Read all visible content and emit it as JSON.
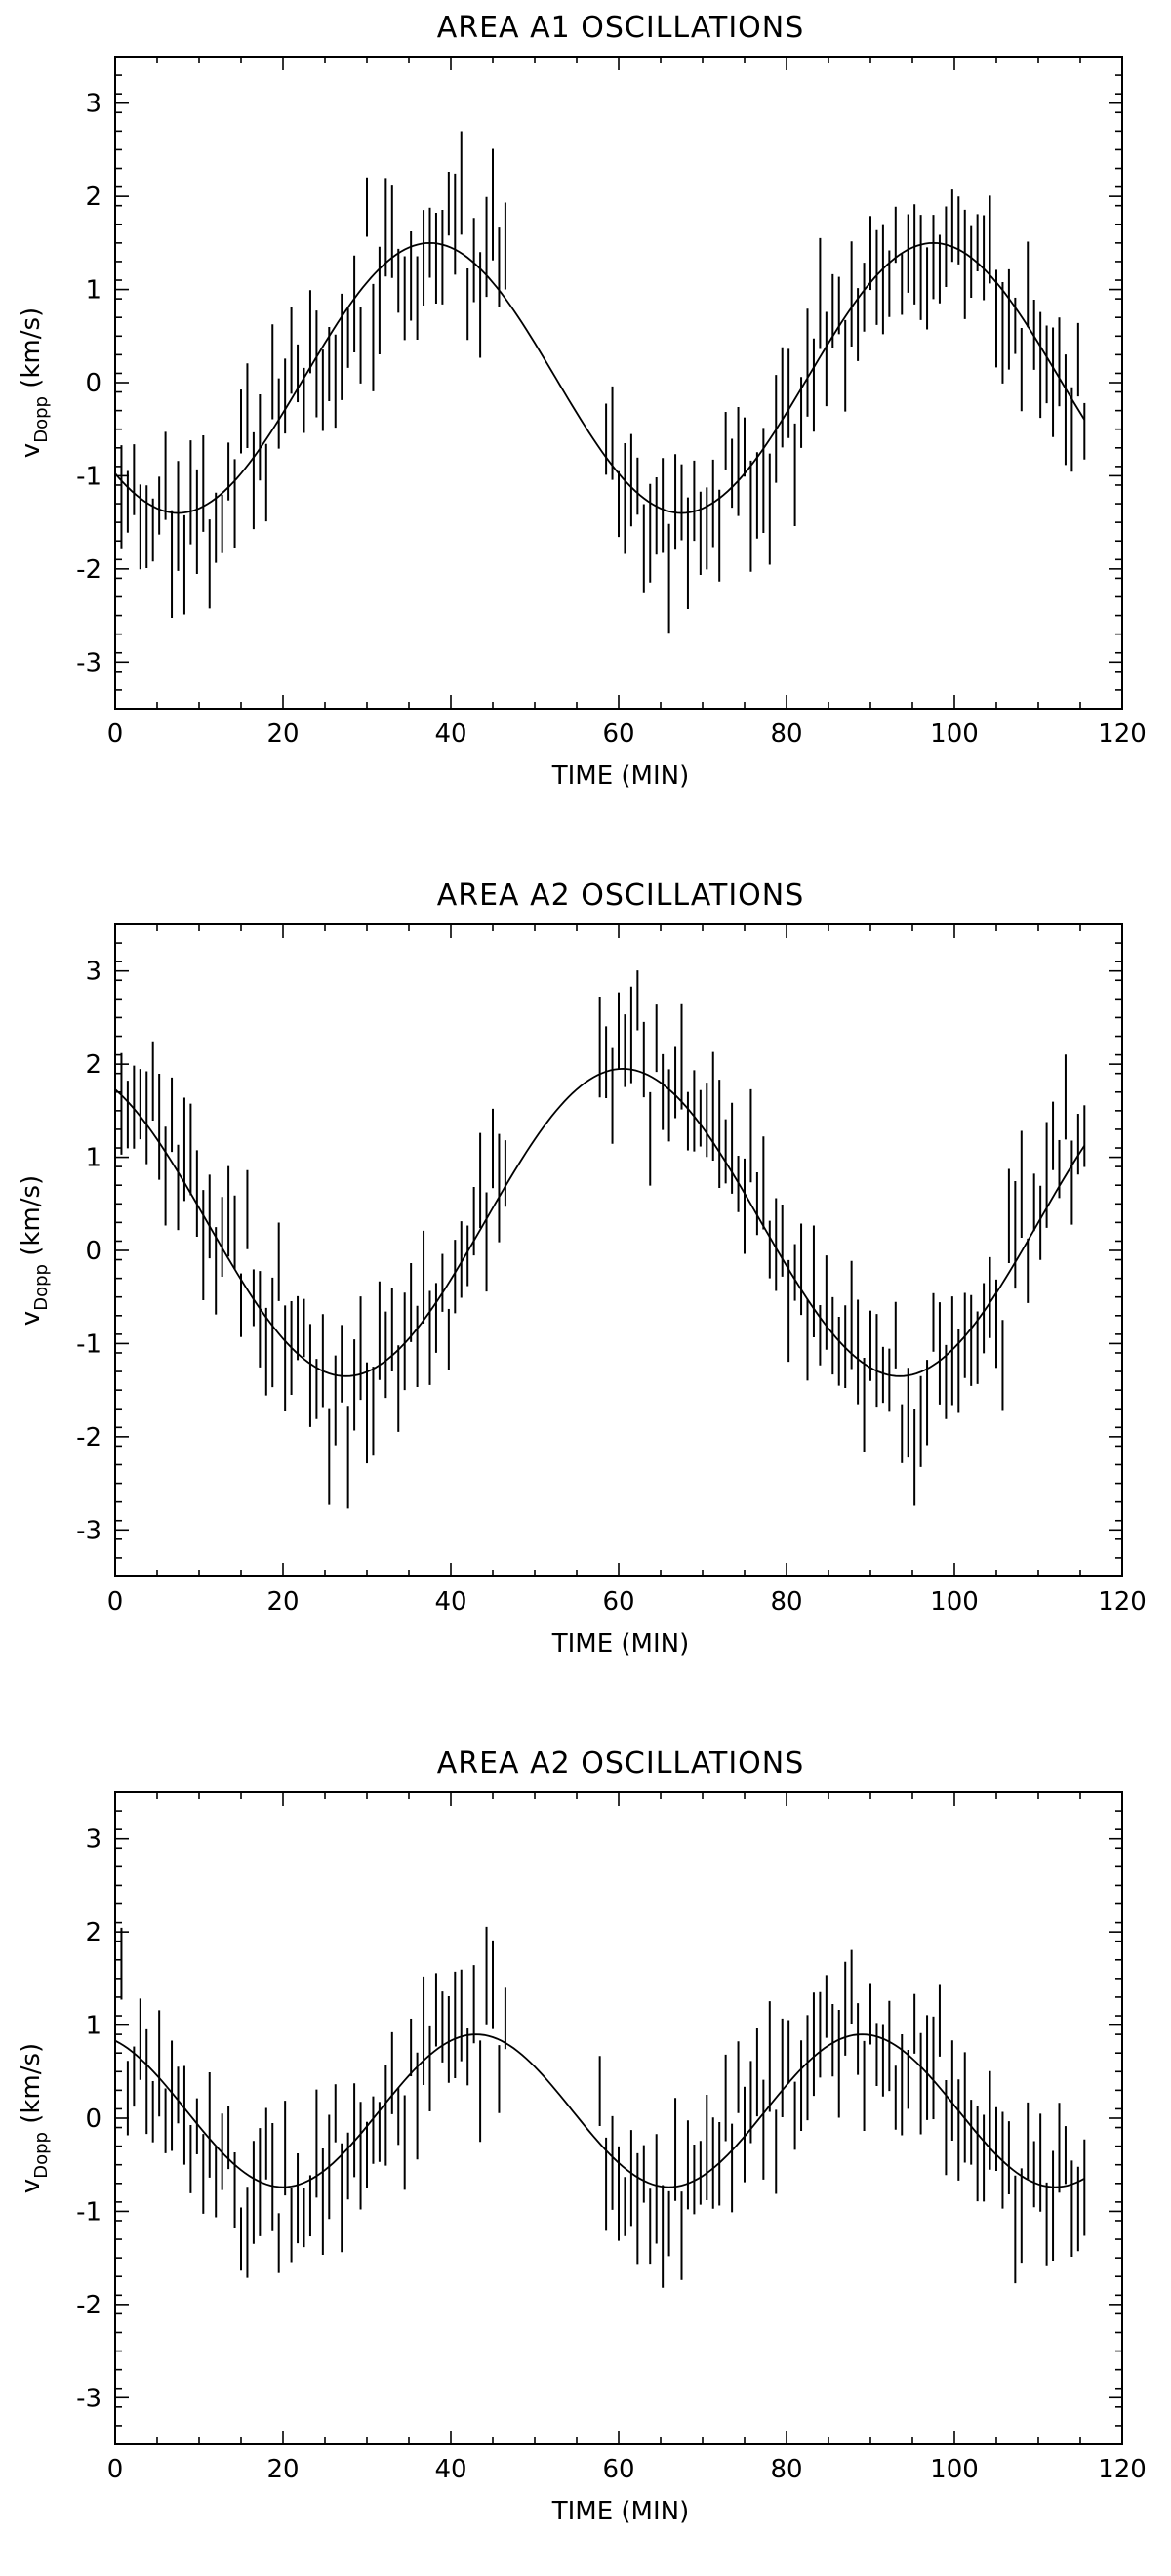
{
  "chart_data": [
    {
      "type": "scatter",
      "title": "AREA A1 OSCILLATIONS",
      "xlabel": "TIME (MIN)",
      "ylabel": {
        "main": "v",
        "sub": "Dopp",
        "units": " (km/s)"
      },
      "xlim": [
        0,
        120
      ],
      "ylim": [
        -3.5,
        3.5
      ],
      "xticks": [
        0,
        20,
        40,
        60,
        80,
        100,
        120
      ],
      "yticks": [
        -3,
        -2,
        -1,
        0,
        1,
        2,
        3
      ],
      "grid": false,
      "fit": {
        "amplitude": 1.45,
        "period_min": 60,
        "peak_time_min": 37.5,
        "offset": 0.05
      },
      "series": [
        {
          "name": "measurements",
          "sampling_min": 0.75,
          "x_end": 115.5,
          "gaps": [
            [
              46.5,
              58.5
            ]
          ],
          "noise_sd": 0.35,
          "half_error_range": [
            0.3,
            0.6
          ],
          "seed": 11
        }
      ]
    },
    {
      "type": "scatter",
      "title": "AREA A2 OSCILLATIONS",
      "xlabel": "TIME (MIN)",
      "ylabel": {
        "main": "v",
        "sub": "Dopp",
        "units": " (km/s)"
      },
      "xlim": [
        0,
        120
      ],
      "ylim": [
        -3.5,
        3.5
      ],
      "xticks": [
        0,
        20,
        40,
        60,
        80,
        100,
        120
      ],
      "yticks": [
        -3,
        -2,
        -1,
        0,
        1,
        2,
        3
      ],
      "grid": false,
      "fit": {
        "amplitude": 1.65,
        "period_min": 66,
        "peak_time_min": 60.5,
        "offset": 0.3
      },
      "series": [
        {
          "name": "measurements",
          "sampling_min": 0.75,
          "x_end": 115.5,
          "gaps": [
            [
              46.5,
              57.5
            ]
          ],
          "noise_sd": 0.35,
          "half_error_range": [
            0.3,
            0.6
          ],
          "seed": 23
        }
      ]
    },
    {
      "type": "scatter",
      "title": "AREA A2 OSCILLATIONS",
      "xlabel": "TIME (MIN)",
      "ylabel": {
        "main": "v",
        "sub": "Dopp",
        "units": " (km/s)"
      },
      "xlim": [
        0,
        120
      ],
      "ylim": [
        -3.5,
        3.5
      ],
      "xticks": [
        0,
        20,
        40,
        60,
        80,
        100,
        120
      ],
      "yticks": [
        -3,
        -2,
        -1,
        0,
        1,
        2,
        3
      ],
      "grid": false,
      "fit": {
        "amplitude": 0.82,
        "period_min": 46,
        "peak_time_min": 43,
        "offset": 0.08
      },
      "series": [
        {
          "name": "measurements",
          "sampling_min": 0.75,
          "x_end": 115.5,
          "gaps": [
            [
              46.5,
              57.5
            ]
          ],
          "noise_sd": 0.35,
          "half_error_range": [
            0.3,
            0.6
          ],
          "seed": 37
        }
      ]
    }
  ]
}
